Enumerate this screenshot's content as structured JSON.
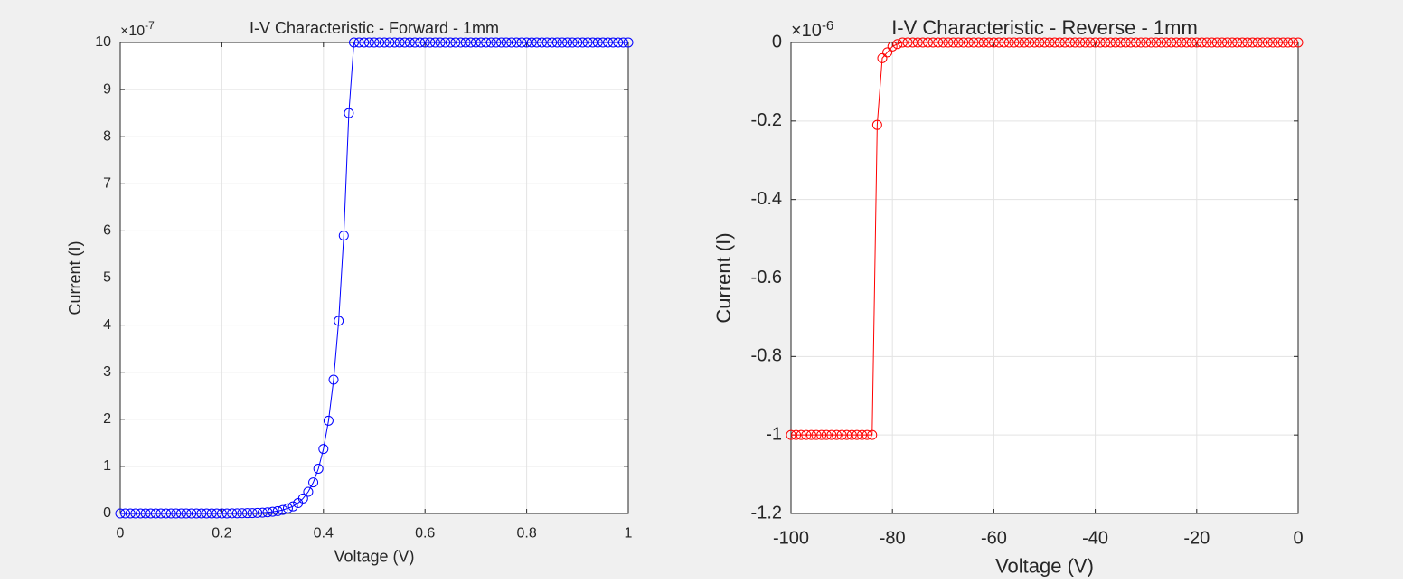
{
  "chart_data": [
    {
      "type": "line",
      "marker": "o",
      "title": "I-V Characteristic - Forward - 1mm",
      "x_label": "Voltage (V)",
      "y_label": "Current (I)",
      "y_exponent": {
        "base": "×10",
        "power": "-7"
      },
      "color": "#0000ff",
      "grid": true,
      "xlim": [
        0,
        1
      ],
      "xticks": [
        0,
        0.2,
        0.4,
        0.6,
        0.8,
        1
      ],
      "ylim": [
        0,
        10
      ],
      "yticks": [
        0,
        1,
        2,
        3,
        4,
        5,
        6,
        7,
        8,
        9,
        10
      ],
      "x": [
        0,
        0.01,
        0.02,
        0.03,
        0.04,
        0.05,
        0.06,
        0.07,
        0.08,
        0.09,
        0.1,
        0.11,
        0.12,
        0.13,
        0.14,
        0.15,
        0.16,
        0.17,
        0.18,
        0.19,
        0.2,
        0.21,
        0.22,
        0.23,
        0.24,
        0.25,
        0.26,
        0.27,
        0.28,
        0.29,
        0.3,
        0.31,
        0.32,
        0.33,
        0.34,
        0.35,
        0.36,
        0.37,
        0.38,
        0.39,
        0.4,
        0.41,
        0.42,
        0.43,
        0.44,
        0.45,
        0.46,
        0.47,
        0.48,
        0.49,
        0.5,
        0.51,
        0.52,
        0.53,
        0.54,
        0.55,
        0.56,
        0.57,
        0.58,
        0.59,
        0.6,
        0.61,
        0.62,
        0.63,
        0.64,
        0.65,
        0.66,
        0.67,
        0.68,
        0.69,
        0.7,
        0.71,
        0.72,
        0.73,
        0.74,
        0.75,
        0.76,
        0.77,
        0.78,
        0.79,
        0.8,
        0.81,
        0.82,
        0.83,
        0.84,
        0.85,
        0.86,
        0.87,
        0.88,
        0.89,
        0.9,
        0.91,
        0.92,
        0.93,
        0.94,
        0.95,
        0.96,
        0.97,
        0.98,
        0.99,
        1
      ],
      "values": [
        0,
        0,
        0,
        0,
        0,
        0,
        0,
        0,
        0,
        0,
        0,
        0,
        0,
        0,
        0,
        0,
        0,
        0,
        0,
        0,
        0,
        0.001,
        0.002,
        0.003,
        0.004,
        0.006,
        0.008,
        0.012,
        0.017,
        0.025,
        0.036,
        0.05,
        0.074,
        0.11,
        0.15,
        0.22,
        0.32,
        0.46,
        0.66,
        0.95,
        1.37,
        1.97,
        2.84,
        4.09,
        5.9,
        8.5,
        10,
        10,
        10,
        10,
        10,
        10,
        10,
        10,
        10,
        10,
        10,
        10,
        10,
        10,
        10,
        10,
        10,
        10,
        10,
        10,
        10,
        10,
        10,
        10,
        10,
        10,
        10,
        10,
        10,
        10,
        10,
        10,
        10,
        10,
        10,
        10,
        10,
        10,
        10,
        10,
        10,
        10,
        10,
        10,
        10,
        10,
        10,
        10,
        10,
        10,
        10,
        10,
        10,
        10,
        10
      ]
    },
    {
      "type": "line",
      "marker": "o",
      "title": "I-V Characteristic - Reverse - 1mm",
      "x_label": "Voltage (V)",
      "y_label": "Current (I)",
      "y_exponent": {
        "base": "×10",
        "power": "-6"
      },
      "color": "#ff0000",
      "grid": true,
      "xlim": [
        -100,
        0
      ],
      "xticks": [
        -100,
        -80,
        -60,
        -40,
        -20,
        0
      ],
      "ylim": [
        -1.2,
        0
      ],
      "yticks": [
        -1.2,
        -1,
        -0.8,
        -0.6,
        -0.4,
        -0.2,
        0
      ],
      "x": [
        -100,
        -99,
        -98,
        -97,
        -96,
        -95,
        -94,
        -93,
        -92,
        -91,
        -90,
        -89,
        -88,
        -87,
        -86,
        -85,
        -84,
        -83,
        -82,
        -81,
        -80,
        -79,
        -78,
        -77,
        -76,
        -75,
        -74,
        -73,
        -72,
        -71,
        -70,
        -69,
        -68,
        -67,
        -66,
        -65,
        -64,
        -63,
        -62,
        -61,
        -60,
        -59,
        -58,
        -57,
        -56,
        -55,
        -54,
        -53,
        -52,
        -51,
        -50,
        -49,
        -48,
        -47,
        -46,
        -45,
        -44,
        -43,
        -42,
        -41,
        -40,
        -39,
        -38,
        -37,
        -36,
        -35,
        -34,
        -33,
        -32,
        -31,
        -30,
        -29,
        -28,
        -27,
        -26,
        -25,
        -24,
        -23,
        -22,
        -21,
        -20,
        -19,
        -18,
        -17,
        -16,
        -15,
        -14,
        -13,
        -12,
        -11,
        -10,
        -9,
        -8,
        -7,
        -6,
        -5,
        -4,
        -3,
        -2,
        -1,
        0
      ],
      "values": [
        -1,
        -1,
        -1,
        -1,
        -1,
        -1,
        -1,
        -1,
        -1,
        -1,
        -1,
        -1,
        -1,
        -1,
        -1,
        -1,
        -1,
        -0.21,
        -0.04,
        -0.025,
        -0.01,
        -0.004,
        0,
        0,
        0,
        0,
        0,
        0,
        0,
        0,
        0,
        0,
        0,
        0,
        0,
        0,
        0,
        0,
        0,
        0,
        0,
        0,
        0,
        0,
        0,
        0,
        0,
        0,
        0,
        0,
        0,
        0,
        0,
        0,
        0,
        0,
        0,
        0,
        0,
        0,
        0,
        0,
        0,
        0,
        0,
        0,
        0,
        0,
        0,
        0,
        0,
        0,
        0,
        0,
        0,
        0,
        0,
        0,
        0,
        0,
        0,
        0,
        0,
        0,
        0,
        0,
        0,
        0,
        0,
        0,
        0,
        0,
        0,
        0,
        0,
        0,
        0,
        0,
        0,
        0,
        0
      ]
    }
  ]
}
